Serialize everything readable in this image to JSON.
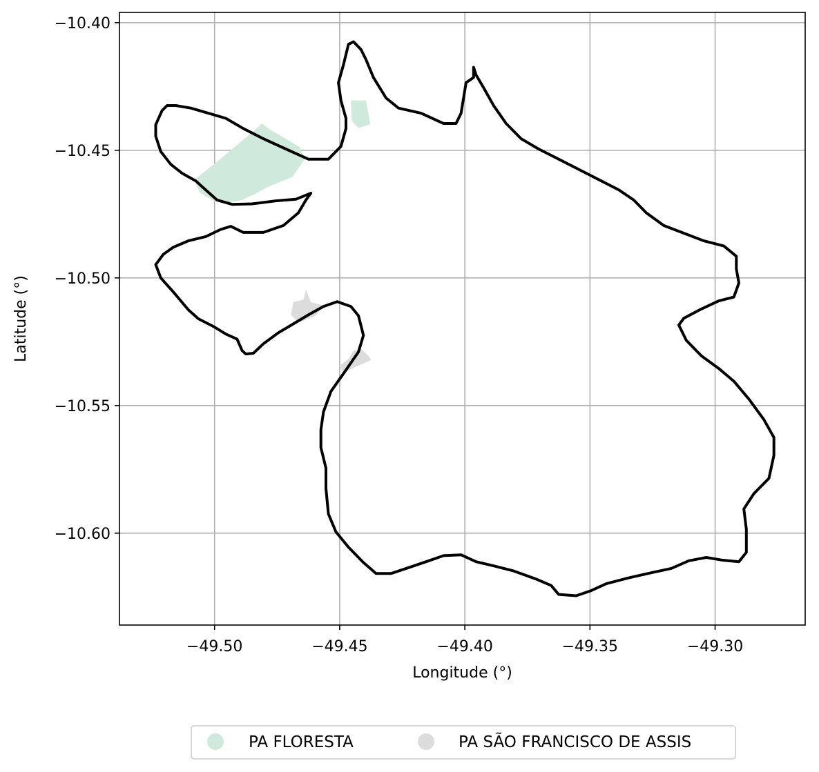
{
  "chart_data": {
    "type": "map",
    "title": "",
    "xlabel": "Longitude (°)",
    "ylabel": "Latitude (°)",
    "xlim": [
      -49.538,
      -49.264
    ],
    "ylim": [
      -10.636,
      -10.396
    ],
    "grid": true,
    "x_ticks": [
      {
        "value": -49.5,
        "label": "−49.50"
      },
      {
        "value": -49.45,
        "label": "−49.45"
      },
      {
        "value": -49.4,
        "label": "−49.40"
      },
      {
        "value": -49.35,
        "label": "−49.35"
      },
      {
        "value": -49.3,
        "label": "−49.30"
      }
    ],
    "y_ticks": [
      {
        "value": -10.4,
        "label": "−10.40"
      },
      {
        "value": -10.45,
        "label": "−10.45"
      },
      {
        "value": -10.5,
        "label": "−10.50"
      },
      {
        "value": -10.55,
        "label": "−10.55"
      },
      {
        "value": -10.6,
        "label": "−10.60"
      }
    ],
    "legend": {
      "placement": "bottom-center",
      "entries": [
        {
          "name": "PA FLORESTA",
          "color": "#cfeadd"
        },
        {
          "name": "PA SÃO FRANCISCO DE ASSIS",
          "color": "#dcdcdc"
        }
      ]
    },
    "areas": [
      {
        "name": "PA FLORESTA",
        "color": "#cfeadd",
        "parts": [
          [
            [
              -49.508,
              -10.4615
            ],
            [
              -49.499,
              -10.4545
            ],
            [
              -49.4905,
              -10.4475
            ],
            [
              -49.4845,
              -10.4425
            ],
            [
              -49.481,
              -10.4395
            ],
            [
              -49.478,
              -10.4418
            ],
            [
              -49.4715,
              -10.4455
            ],
            [
              -49.466,
              -10.4488
            ],
            [
              -49.464,
              -10.4535
            ],
            [
              -49.469,
              -10.4605
            ],
            [
              -49.474,
              -10.4625
            ],
            [
              -49.479,
              -10.4645
            ],
            [
              -49.484,
              -10.4672
            ],
            [
              -49.489,
              -10.4695
            ],
            [
              -49.495,
              -10.4705
            ],
            [
              -49.501,
              -10.4695
            ],
            [
              -49.506,
              -10.4665
            ]
          ],
          [
            [
              -49.4455,
              -10.4305
            ],
            [
              -49.4395,
              -10.4305
            ],
            [
              -49.4378,
              -10.4398
            ],
            [
              -49.4425,
              -10.4412
            ],
            [
              -49.4452,
              -10.4385
            ]
          ]
        ]
      },
      {
        "name": "PA SÃO FRANCISCO DE ASSIS",
        "color": "#dcdcdc",
        "parts": [
          [
            [
              -49.4635,
              -10.5045
            ],
            [
              -49.4615,
              -10.5095
            ],
            [
              -49.4565,
              -10.5108
            ],
            [
              -49.4595,
              -10.5148
            ],
            [
              -49.4665,
              -10.5175
            ],
            [
              -49.4695,
              -10.5145
            ],
            [
              -49.4685,
              -10.5095
            ],
            [
              -49.4645,
              -10.5085
            ]
          ],
          [
            [
              -49.4415,
              -10.5278
            ],
            [
              -49.4385,
              -10.5305
            ],
            [
              -49.4375,
              -10.5322
            ],
            [
              -49.4435,
              -10.5348
            ],
            [
              -49.4485,
              -10.5372
            ],
            [
              -49.4502,
              -10.5345
            ],
            [
              -49.4465,
              -10.5318
            ],
            [
              -49.4445,
              -10.5285
            ]
          ]
        ]
      }
    ],
    "outline": [
      [
        -49.519,
        -10.4325
      ],
      [
        -49.521,
        -10.4345
      ],
      [
        -49.5235,
        -10.44
      ],
      [
        -49.5235,
        -10.4445
      ],
      [
        -49.5215,
        -10.4505
      ],
      [
        -49.5175,
        -10.4555
      ],
      [
        -49.513,
        -10.459
      ],
      [
        -49.5075,
        -10.462
      ],
      [
        -49.503,
        -10.466
      ],
      [
        -49.499,
        -10.4695
      ],
      [
        -49.493,
        -10.4712
      ],
      [
        -49.485,
        -10.471
      ],
      [
        -49.4755,
        -10.4698
      ],
      [
        -49.4675,
        -10.4692
      ],
      [
        -49.4615,
        -10.4668
      ],
      [
        -49.4635,
        -10.4695
      ],
      [
        -49.4665,
        -10.4745
      ],
      [
        -49.4725,
        -10.4795
      ],
      [
        -49.4805,
        -10.4822
      ],
      [
        -49.4885,
        -10.4822
      ],
      [
        -49.4935,
        -10.4798
      ],
      [
        -49.4975,
        -10.481
      ],
      [
        -49.5035,
        -10.4838
      ],
      [
        -49.5105,
        -10.4855
      ],
      [
        -49.5165,
        -10.488
      ],
      [
        -49.5205,
        -10.4908
      ],
      [
        -49.5235,
        -10.4948
      ],
      [
        -49.5215,
        -10.5
      ],
      [
        -49.5165,
        -10.5055
      ],
      [
        -49.5105,
        -10.5125
      ],
      [
        -49.5065,
        -10.516
      ],
      [
        -49.5005,
        -10.519
      ],
      [
        -49.4955,
        -10.522
      ],
      [
        -49.491,
        -10.524
      ],
      [
        -49.489,
        -10.5285
      ],
      [
        -49.4875,
        -10.5298
      ],
      [
        -49.4845,
        -10.5295
      ],
      [
        -49.4805,
        -10.5258
      ],
      [
        -49.4745,
        -10.5215
      ],
      [
        -49.4685,
        -10.518
      ],
      [
        -49.4625,
        -10.5145
      ],
      [
        -49.4565,
        -10.5112
      ],
      [
        -49.451,
        -10.5093
      ],
      [
        -49.4455,
        -10.5112
      ],
      [
        -49.4425,
        -10.5148
      ],
      [
        -49.4405,
        -10.5225
      ],
      [
        -49.4425,
        -10.529
      ],
      [
        -49.4485,
        -10.5375
      ],
      [
        -49.4535,
        -10.5445
      ],
      [
        -49.4565,
        -10.5525
      ],
      [
        -49.4575,
        -10.5595
      ],
      [
        -49.4575,
        -10.5665
      ],
      [
        -49.4555,
        -10.5745
      ],
      [
        -49.4555,
        -10.5825
      ],
      [
        -49.4545,
        -10.5925
      ],
      [
        -49.4515,
        -10.5995
      ],
      [
        -49.4465,
        -10.6055
      ],
      [
        -49.4405,
        -10.6115
      ],
      [
        -49.4355,
        -10.6158
      ],
      [
        -49.4295,
        -10.6158
      ],
      [
        -49.4225,
        -10.6135
      ],
      [
        -49.4155,
        -10.6112
      ],
      [
        -49.4085,
        -10.6088
      ],
      [
        -49.4015,
        -10.6085
      ],
      [
        -49.3955,
        -10.6112
      ],
      [
        -49.3885,
        -10.6128
      ],
      [
        -49.3805,
        -10.6148
      ],
      [
        -49.3715,
        -10.618
      ],
      [
        -49.3655,
        -10.6205
      ],
      [
        -49.3625,
        -10.624
      ],
      [
        -49.3555,
        -10.6245
      ],
      [
        -49.3495,
        -10.6225
      ],
      [
        -49.3435,
        -10.6198
      ],
      [
        -49.3345,
        -10.6175
      ],
      [
        -49.3255,
        -10.6155
      ],
      [
        -49.3175,
        -10.6138
      ],
      [
        -49.3105,
        -10.6108
      ],
      [
        -49.3035,
        -10.6095
      ],
      [
        -49.2975,
        -10.6105
      ],
      [
        -49.2905,
        -10.6112
      ],
      [
        -49.2875,
        -10.6075
      ],
      [
        -49.2875,
        -10.5985
      ],
      [
        -49.2885,
        -10.5905
      ],
      [
        -49.2845,
        -10.5845
      ],
      [
        -49.2785,
        -10.5785
      ],
      [
        -49.2765,
        -10.5695
      ],
      [
        -49.2765,
        -10.5625
      ],
      [
        -49.2805,
        -10.5555
      ],
      [
        -49.2865,
        -10.5475
      ],
      [
        -49.2925,
        -10.5405
      ],
      [
        -49.2985,
        -10.5355
      ],
      [
        -49.3055,
        -10.5305
      ],
      [
        -49.3115,
        -10.5245
      ],
      [
        -49.3145,
        -10.5185
      ],
      [
        -49.3125,
        -10.5158
      ],
      [
        -49.3055,
        -10.5122
      ],
      [
        -49.2985,
        -10.509
      ],
      [
        -49.2925,
        -10.5075
      ],
      [
        -49.2905,
        -10.502
      ],
      [
        -49.2915,
        -10.4965
      ],
      [
        -49.2915,
        -10.4915
      ],
      [
        -49.2965,
        -10.4875
      ],
      [
        -49.3045,
        -10.4855
      ],
      [
        -49.3125,
        -10.4825
      ],
      [
        -49.3205,
        -10.4795
      ],
      [
        -49.3275,
        -10.4745
      ],
      [
        -49.3325,
        -10.4695
      ],
      [
        -49.3385,
        -10.4655
      ],
      [
        -49.3465,
        -10.4615
      ],
      [
        -49.3545,
        -10.4575
      ],
      [
        -49.3625,
        -10.4535
      ],
      [
        -49.3705,
        -10.4495
      ],
      [
        -49.3775,
        -10.4455
      ],
      [
        -49.3835,
        -10.4395
      ],
      [
        -49.3885,
        -10.4325
      ],
      [
        -49.3925,
        -10.4255
      ],
      [
        -49.3955,
        -10.4205
      ],
      [
        -49.3965,
        -10.4175
      ],
      [
        -49.3965,
        -10.4215
      ],
      [
        -49.3995,
        -10.4235
      ],
      [
        -49.4005,
        -10.4295
      ],
      [
        -49.4015,
        -10.4355
      ],
      [
        -49.4035,
        -10.4395
      ],
      [
        -49.4085,
        -10.4395
      ],
      [
        -49.4175,
        -10.4355
      ],
      [
        -49.4265,
        -10.4335
      ],
      [
        -49.4315,
        -10.4295
      ],
      [
        -49.4365,
        -10.4215
      ],
      [
        -49.4395,
        -10.4145
      ],
      [
        -49.4415,
        -10.4105
      ],
      [
        -49.4445,
        -10.4075
      ],
      [
        -49.4465,
        -10.4085
      ],
      [
        -49.4485,
        -10.4165
      ],
      [
        -49.4505,
        -10.4235
      ],
      [
        -49.4495,
        -10.4305
      ],
      [
        -49.4475,
        -10.4375
      ],
      [
        -49.4475,
        -10.4415
      ],
      [
        -49.4495,
        -10.4485
      ],
      [
        -49.4545,
        -10.4535
      ],
      [
        -49.4625,
        -10.4535
      ],
      [
        -49.4715,
        -10.4495
      ],
      [
        -49.4805,
        -10.4455
      ],
      [
        -49.4885,
        -10.4415
      ],
      [
        -49.4955,
        -10.4375
      ],
      [
        -49.5025,
        -10.4355
      ],
      [
        -49.5095,
        -10.4335
      ],
      [
        -49.5155,
        -10.4325
      ],
      [
        -49.519,
        -10.4325
      ]
    ]
  }
}
